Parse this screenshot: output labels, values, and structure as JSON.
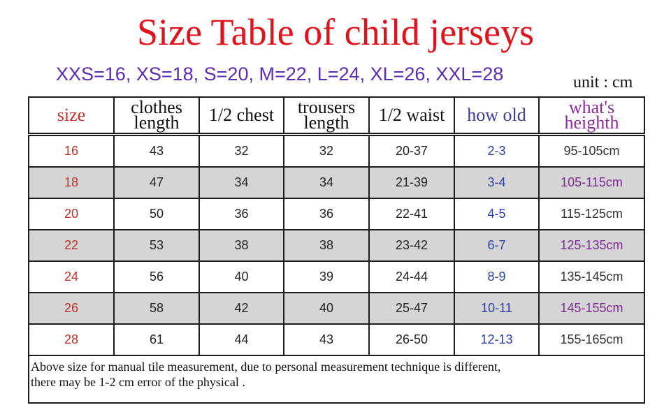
{
  "title": "Size Table of child jerseys",
  "size_map": "XXS=16, XS=18, S=20, M=22, L=24, XL=26, XXL=28",
  "unit": "unit : cm",
  "colors": {
    "title": "#e0121b",
    "size_map": "#5b2db3",
    "row_shade": "#d5d5d5"
  },
  "table": {
    "headers": {
      "size": "size",
      "clothes_length_1": "clothes",
      "clothes_length_2": "length",
      "half_chest": "1/2 chest",
      "trousers_length_1": "trousers",
      "trousers_length_2": "length",
      "half_waist": "1/2 waist",
      "how_old": "how old",
      "height_1": "what's",
      "height_2": "heighth"
    },
    "rows": [
      {
        "size": "16",
        "clothes_length": "43",
        "half_chest": "32",
        "trousers_length": "32",
        "half_waist": "20-37",
        "how_old": "2-3",
        "height": "95-105cm"
      },
      {
        "size": "18",
        "clothes_length": "47",
        "half_chest": "34",
        "trousers_length": "34",
        "half_waist": "21-39",
        "how_old": "3-4",
        "height": "105-115cm"
      },
      {
        "size": "20",
        "clothes_length": "50",
        "half_chest": "36",
        "trousers_length": "36",
        "half_waist": "22-41",
        "how_old": "4-5",
        "height": "115-125cm"
      },
      {
        "size": "22",
        "clothes_length": "53",
        "half_chest": "38",
        "trousers_length": "38",
        "half_waist": "23-42",
        "how_old": "6-7",
        "height": "125-135cm"
      },
      {
        "size": "24",
        "clothes_length": "56",
        "half_chest": "40",
        "trousers_length": "39",
        "half_waist": "24-44",
        "how_old": "8-9",
        "height": "135-145cm"
      },
      {
        "size": "26",
        "clothes_length": "58",
        "half_chest": "42",
        "trousers_length": "40",
        "half_waist": "25-47",
        "how_old": "10-11",
        "height": "145-155cm"
      },
      {
        "size": "28",
        "clothes_length": "61",
        "half_chest": "44",
        "trousers_length": "43",
        "half_waist": "26-50",
        "how_old": "12-13",
        "height": "155-165cm"
      }
    ],
    "note_line1": "Above size for manual tile measurement, due to personal measurement technique is different,",
    "note_line2": "there may be 1-2 cm error of the physical ."
  }
}
